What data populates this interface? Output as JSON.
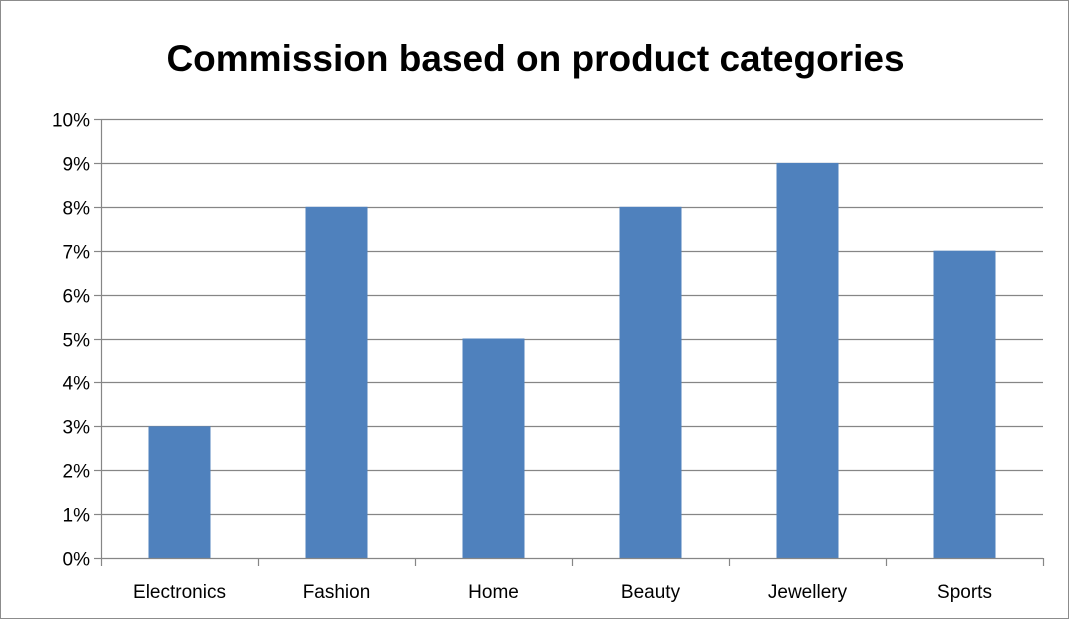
{
  "chart_data": {
    "type": "bar",
    "title": "Commission based on product categories",
    "xlabel": "",
    "ylabel": "",
    "categories": [
      "Electronics",
      "Fashion",
      "Home",
      "Beauty",
      "Jewellery",
      "Sports"
    ],
    "values": [
      3,
      8,
      5,
      8,
      9,
      7
    ],
    "ylim": [
      0,
      10
    ],
    "y_tick_labels": [
      "0%",
      "1%",
      "2%",
      "3%",
      "4%",
      "5%",
      "6%",
      "7%",
      "8%",
      "9%",
      "10%"
    ],
    "grid": true,
    "legend": "none",
    "colors": {
      "bar": "#4f81bd",
      "grid": "#868686",
      "axis": "#868686",
      "text": "#000000"
    }
  }
}
